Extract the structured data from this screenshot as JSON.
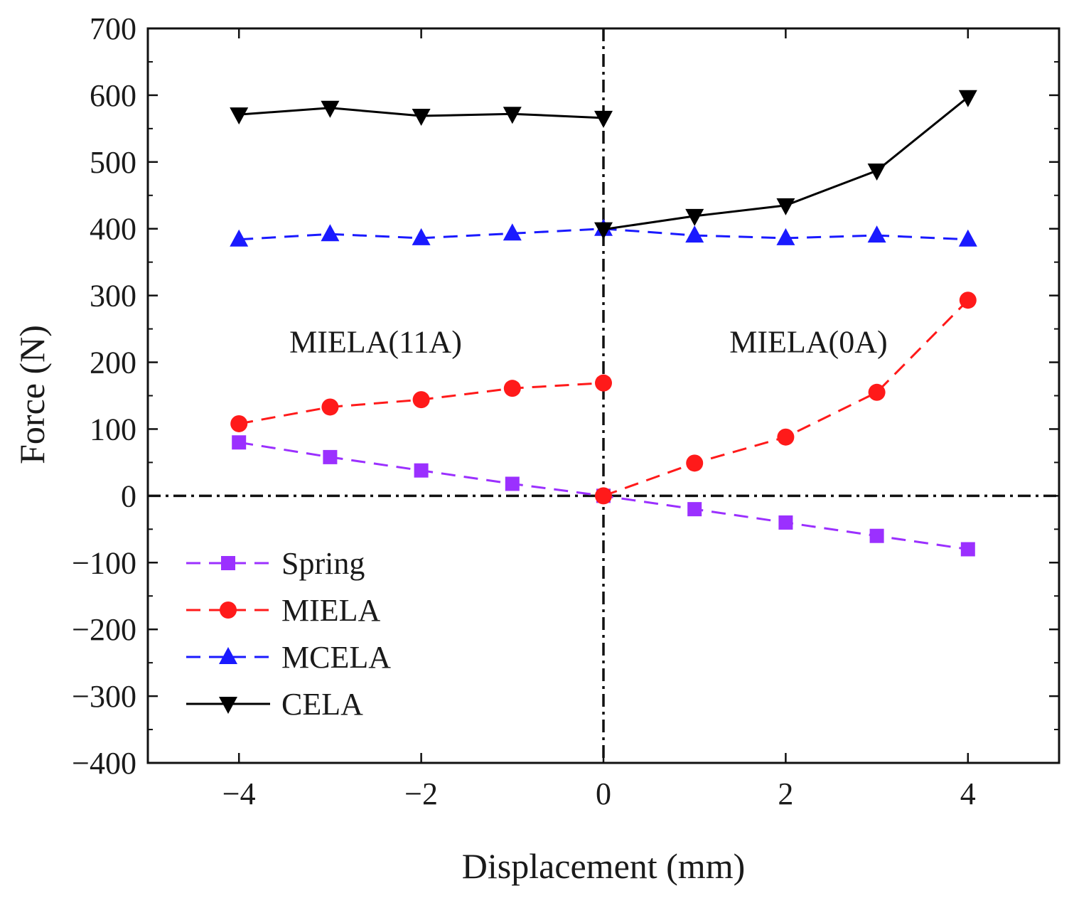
{
  "chart_data": {
    "type": "line",
    "title": "",
    "xlabel": "Displacement (mm)",
    "ylabel": "Force (N)",
    "xlim": [
      -5,
      5
    ],
    "ylim": [
      -400,
      700
    ],
    "xticks": [
      -4,
      -2,
      0,
      2,
      4
    ],
    "xtick_labels": [
      "−4",
      "−2",
      "0",
      "2",
      "4"
    ],
    "yticks": [
      -400,
      -300,
      -200,
      -100,
      0,
      100,
      200,
      300,
      400,
      500,
      600,
      700
    ],
    "ytick_labels": [
      "−400",
      "−300",
      "−200",
      "−100",
      "0",
      "100",
      "200",
      "300",
      "400",
      "500",
      "600",
      "700"
    ],
    "reference_lines": {
      "x": 0,
      "y": 0,
      "style": "dash-dot",
      "color": "#111111"
    },
    "annotations": [
      {
        "text": "MIELA(11A)",
        "x": -2.5,
        "y": 215
      },
      {
        "text": "MIELA(0A)",
        "x": 2.25,
        "y": 215
      }
    ],
    "legend_position": "lower-left",
    "series": [
      {
        "name": "Spring",
        "color": "#9b30ff",
        "marker": "square",
        "line": "dashed",
        "segments": [
          {
            "x": [
              -4,
              -3,
              -2,
              -1,
              0,
              1,
              2,
              3,
              4
            ],
            "y": [
              80,
              58,
              38,
              18,
              0,
              -20,
              -40,
              -60,
              -80
            ]
          }
        ]
      },
      {
        "name": "MIELA",
        "color": "#ff1a1a",
        "marker": "circle",
        "line": "dashed",
        "segments": [
          {
            "x": [
              -4,
              -3,
              -2,
              -1,
              0
            ],
            "y": [
              108,
              133,
              144,
              161,
              169
            ]
          },
          {
            "x": [
              0,
              1,
              2,
              3,
              4
            ],
            "y": [
              0,
              49,
              88,
              155,
              293
            ]
          }
        ]
      },
      {
        "name": "MCELA",
        "color": "#1a1aff",
        "marker": "triangle-up",
        "line": "dashed",
        "segments": [
          {
            "x": [
              -4,
              -3,
              -2,
              -1,
              0,
              1,
              2,
              3,
              4
            ],
            "y": [
              384,
              392,
              386,
              393,
              400,
              390,
              386,
              390,
              384
            ]
          }
        ]
      },
      {
        "name": "CELA",
        "color": "#000000",
        "marker": "triangle-down",
        "line": "solid",
        "segments": [
          {
            "x": [
              -4,
              -3,
              -2,
              -1,
              0
            ],
            "y": [
              571,
              581,
              569,
              572,
              566
            ]
          },
          {
            "x": [
              0,
              1,
              2,
              3,
              4
            ],
            "y": [
              399,
              419,
              435,
              487,
              597
            ]
          }
        ]
      }
    ]
  }
}
